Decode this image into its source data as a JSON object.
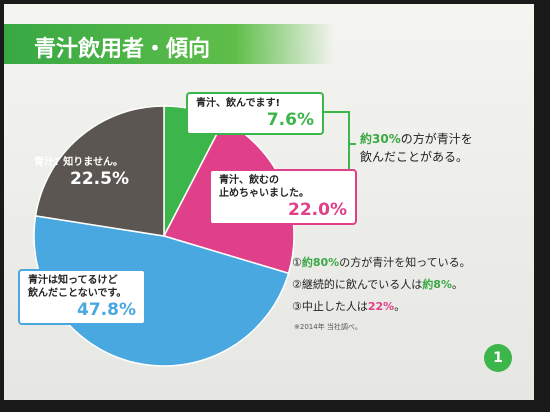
{
  "chart_data": {
    "type": "pie",
    "title": "青汁飲用者・傾向",
    "categories": [
      "青汁、飲んでます!",
      "青汁、飲むの\n止めちゃいました。",
      "青汁は知ってるけど\n飲んだことないです。",
      "青汁? 知りません。"
    ],
    "values": [
      7.6,
      22.0,
      47.8,
      22.5
    ],
    "value_labels": [
      "7.6%",
      "22.0%",
      "47.8%",
      "22.5%"
    ],
    "colors": [
      "#3cb54a",
      "#e0408a",
      "#4aa8e0",
      "#5b5651"
    ],
    "annotation": [
      "約30%",
      "の方が青汁を\n飲んだことがある。"
    ],
    "notes": [
      [
        "①",
        "約80%",
        "の方が青汁を知っている。"
      ],
      [
        "②継続的に飲んでいる人は",
        "約8%",
        "。"
      ],
      [
        "③中止した人は",
        "22%",
        "。"
      ]
    ],
    "note_highlight_colors": [
      "#3aa845",
      "#3aa845",
      "#e0408a"
    ],
    "footnote": "※2014年 当社調べ。",
    "page_number": "1"
  }
}
